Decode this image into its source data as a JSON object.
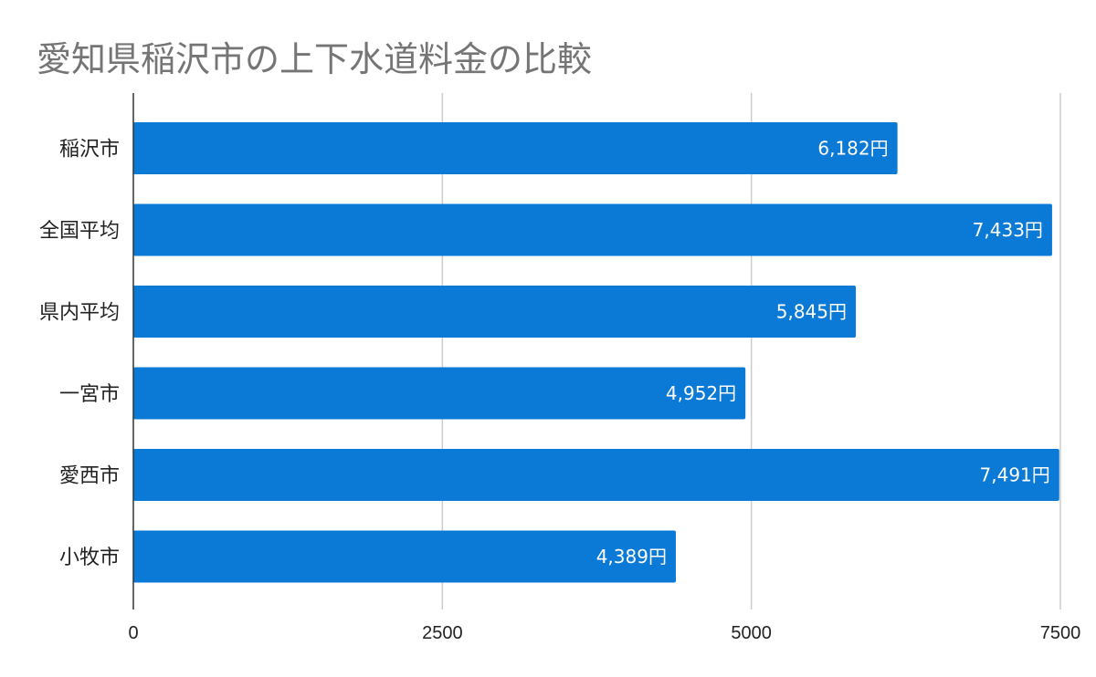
{
  "chart_data": {
    "type": "bar",
    "orientation": "horizontal",
    "title": "愛知県稲沢市の上下水道料金の比較",
    "categories": [
      "稲沢市",
      "全国平均",
      "県内平均",
      "一宮市",
      "愛西市",
      "小牧市"
    ],
    "values": [
      6182,
      7433,
      5845,
      4952,
      7491,
      4389
    ],
    "data_labels": [
      "6,182円",
      "7,433円",
      "5,845円",
      "4,952円",
      "7,491円",
      "4,389円"
    ],
    "xlim": [
      0,
      7500
    ],
    "xticks": [
      "0",
      "2500",
      "5000",
      "7500"
    ],
    "xlabel": "",
    "ylabel": "",
    "grid": true,
    "legend": "none",
    "bar_color": "#0b7ad6",
    "gridline_color": "#cccccc",
    "axis_color": "#333333",
    "title_color": "#757575"
  }
}
